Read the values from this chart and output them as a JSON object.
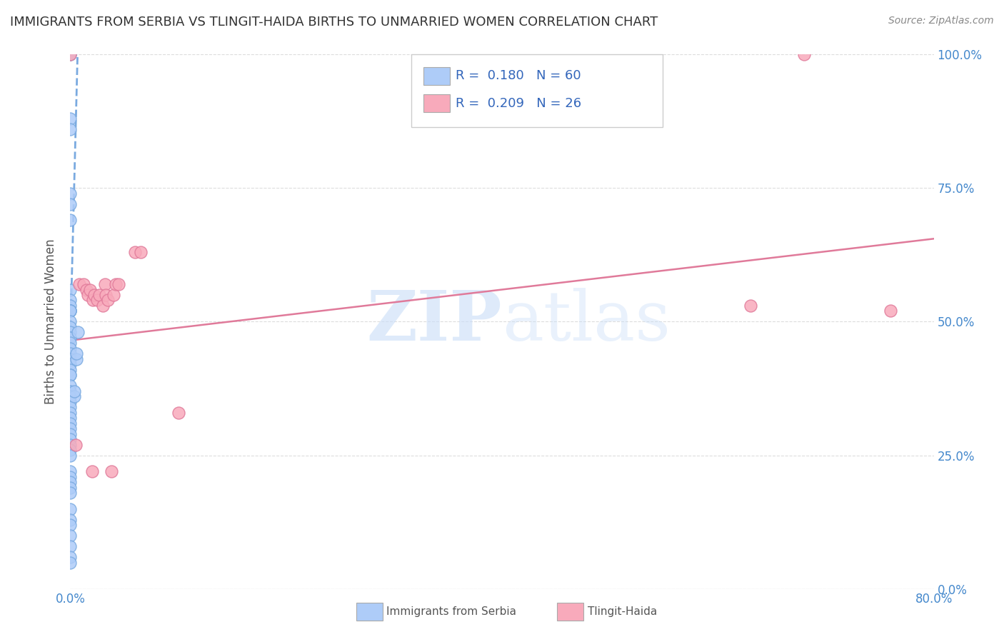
{
  "title": "IMMIGRANTS FROM SERBIA VS TLINGIT-HAIDA BIRTHS TO UNMARRIED WOMEN CORRELATION CHART",
  "source": "Source: ZipAtlas.com",
  "ylabel": "Births to Unmarried Women",
  "xmin": 0.0,
  "xmax": 0.8,
  "ymin": 0.0,
  "ymax": 1.0,
  "serbia_points_x": [
    0.0,
    0.0,
    0.0,
    0.0,
    0.0,
    0.0,
    0.0,
    0.0,
    0.0,
    0.0,
    0.0,
    0.0,
    0.0,
    0.0,
    0.0,
    0.0,
    0.0,
    0.0,
    0.0,
    0.0,
    0.0,
    0.0,
    0.0,
    0.0,
    0.0,
    0.0,
    0.0,
    0.0,
    0.0,
    0.0,
    0.0,
    0.0,
    0.0,
    0.0,
    0.0,
    0.0,
    0.0,
    0.0,
    0.0,
    0.0,
    0.0,
    0.0,
    0.0,
    0.0,
    0.0,
    0.0,
    0.0,
    0.0,
    0.0,
    0.0,
    0.0,
    0.0,
    0.0,
    0.0,
    0.0,
    0.004,
    0.004,
    0.006,
    0.006,
    0.007
  ],
  "serbia_points_y": [
    1.0,
    1.0,
    0.88,
    0.86,
    0.74,
    0.72,
    0.69,
    0.56,
    0.54,
    0.53,
    0.52,
    0.52,
    0.52,
    0.52,
    0.5,
    0.49,
    0.48,
    0.47,
    0.47,
    0.46,
    0.45,
    0.44,
    0.43,
    0.43,
    0.42,
    0.41,
    0.4,
    0.4,
    0.38,
    0.37,
    0.36,
    0.36,
    0.35,
    0.34,
    0.33,
    0.32,
    0.31,
    0.3,
    0.29,
    0.28,
    0.27,
    0.26,
    0.25,
    0.22,
    0.21,
    0.2,
    0.19,
    0.18,
    0.15,
    0.13,
    0.12,
    0.1,
    0.08,
    0.06,
    0.05,
    0.36,
    0.37,
    0.43,
    0.44,
    0.48
  ],
  "tlingit_points_x": [
    0.0,
    0.005,
    0.008,
    0.012,
    0.015,
    0.016,
    0.018,
    0.02,
    0.021,
    0.022,
    0.025,
    0.027,
    0.03,
    0.032,
    0.033,
    0.035,
    0.038,
    0.04,
    0.042,
    0.045,
    0.06,
    0.065,
    0.1,
    0.63,
    0.68,
    0.76
  ],
  "tlingit_points_y": [
    1.0,
    0.27,
    0.57,
    0.57,
    0.56,
    0.55,
    0.56,
    0.22,
    0.54,
    0.55,
    0.54,
    0.55,
    0.53,
    0.57,
    0.55,
    0.54,
    0.22,
    0.55,
    0.57,
    0.57,
    0.63,
    0.63,
    0.33,
    0.53,
    1.0,
    0.52
  ],
  "serbia_line_x": [
    0.0,
    0.007
  ],
  "serbia_line_y": [
    0.47,
    1.02
  ],
  "tlingit_line_x": [
    0.0,
    0.8
  ],
  "tlingit_line_y": [
    0.465,
    0.655
  ],
  "watermark": "ZIPatlas",
  "background_color": "#ffffff",
  "grid_color": "#dddddd",
  "serbia_dot_color": "#aeccf8",
  "serbia_dot_edge": "#7aaae0",
  "tlingit_dot_color": "#f8aabb",
  "tlingit_dot_edge": "#e07a9a",
  "serbia_line_color": "#7aaae0",
  "tlingit_line_color": "#e07a9a",
  "title_color": "#333333",
  "axis_label_color": "#4488cc",
  "legend_text_color": "#3366bb"
}
